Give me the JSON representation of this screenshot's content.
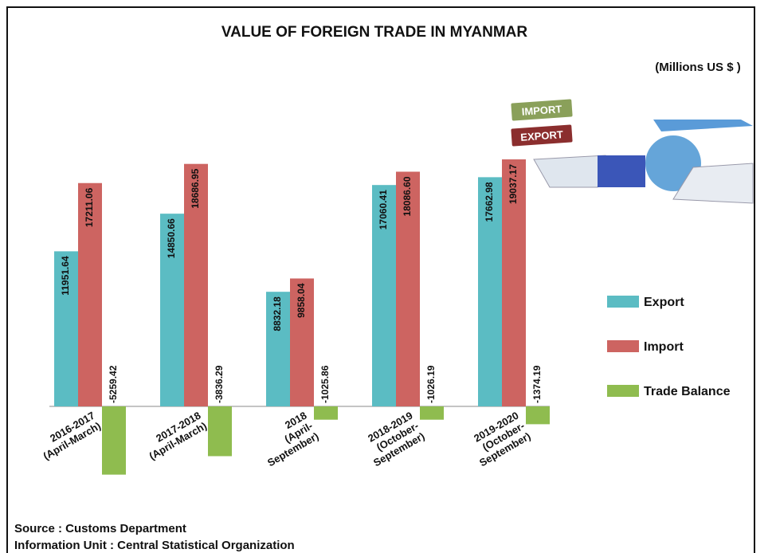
{
  "chart_data": {
    "type": "bar",
    "title": "VALUE OF FOREIGN TRADE  IN MYANMAR",
    "unit_note": "(Millions US $ )",
    "categories": [
      [
        "2016-2017",
        "(April-March)"
      ],
      [
        "2017-2018",
        "(April-March)"
      ],
      [
        "2018",
        "(April-",
        "September)"
      ],
      [
        "2018-2019",
        "(October-",
        "September)"
      ],
      [
        "2019-2020",
        "(October-",
        "September)"
      ]
    ],
    "series": [
      {
        "name": "Export",
        "color": "#5bbcc3",
        "values": [
          11951.64,
          14850.66,
          8832.18,
          17060.41,
          17662.98
        ]
      },
      {
        "name": "Import",
        "color": "#cd6461",
        "values": [
          17211.06,
          18686.95,
          9858.04,
          18086.6,
          19037.17
        ],
        "value_labels": [
          "17211.06",
          "18686.95",
          "9858.04",
          "18086.60",
          "19037.17"
        ]
      },
      {
        "name": "Trade Balance",
        "color": "#8fbc4f",
        "values": [
          -5259.42,
          -3836.29,
          -1025.86,
          -1026.19,
          -1374.19
        ]
      }
    ],
    "legend": "right",
    "stamps": [
      "IMPORT",
      "EXPORT"
    ],
    "source": [
      "Source : Customs Department",
      "Information Unit : Central Statistical Organization"
    ]
  }
}
